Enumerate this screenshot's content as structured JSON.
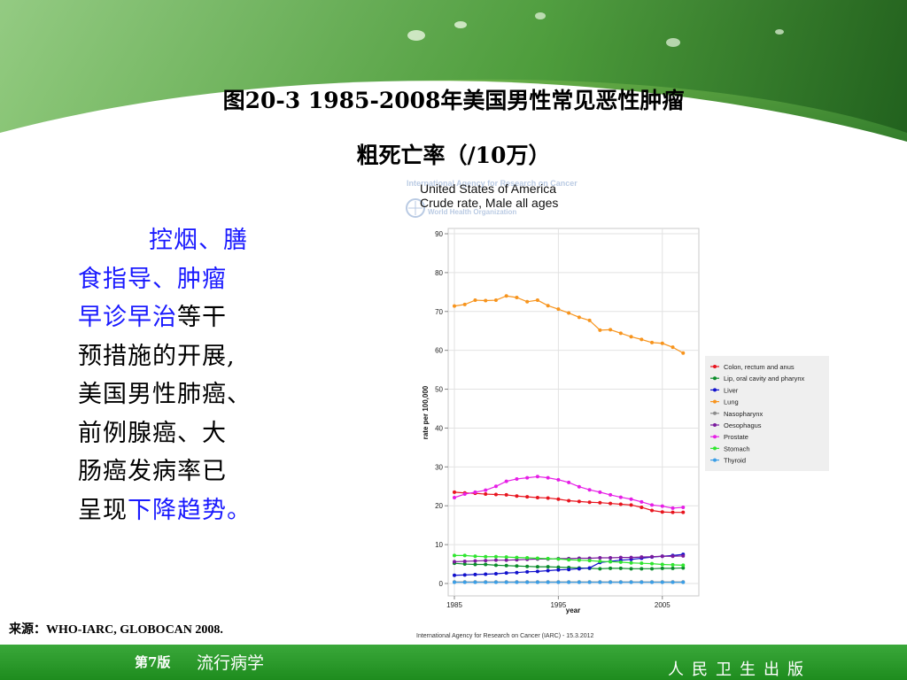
{
  "slide": {
    "title_line1": "图20-3  1985-2008年美国男性常见恶性肿瘤",
    "title_line2": "粗死亡率（/10万）"
  },
  "side": {
    "hl1": "控烟、膳",
    "hl2": "食指导、肿瘤",
    "hl3": "早诊早治",
    "t3": "等干",
    "t4": "预措施的开展,",
    "t5": "美国男性肺癌、",
    "t6": "前例腺癌、大",
    "t7": "肠癌发病率已",
    "t8": "呈现",
    "hl8": "下降趋势。"
  },
  "source_text": "来源：WHO-IARC, GLOBOCAN 2008.",
  "footer": {
    "edition": "第7版",
    "book": "流行病学",
    "publisher": "人民卫生出版"
  },
  "colors": {
    "highlight_text": "#1a1aff",
    "footer_green": "#2a9a2a"
  },
  "chart_data": {
    "type": "line",
    "title": "United States of America",
    "subtitle": "Crude rate, Male all ages",
    "watermark_line1": "International Agency for Research on Cancer",
    "watermark_line2": "World Health Organization",
    "xlabel": "year",
    "ylabel": "rate per 100,000",
    "xlim": [
      1985,
      2008
    ],
    "ylim": [
      0,
      90
    ],
    "xticks": [
      "1985",
      "1995",
      "2005"
    ],
    "yticks": [
      "0",
      "10",
      "20",
      "30",
      "40",
      "50",
      "60",
      "70",
      "80",
      "90"
    ],
    "grid": true,
    "legend_position": "right",
    "credit": "International Agency for Research on Cancer (IARC) - 15.3.2012",
    "x": [
      1985,
      1986,
      1987,
      1988,
      1989,
      1990,
      1991,
      1992,
      1993,
      1994,
      1995,
      1996,
      1997,
      1998,
      1999,
      2000,
      2001,
      2002,
      2003,
      2004,
      2005,
      2006,
      2007
    ],
    "series": [
      {
        "name": "Colon, rectum and anus",
        "color": "#e8141e",
        "values": [
          23.5,
          23.3,
          23.2,
          23.0,
          22.9,
          22.8,
          22.5,
          22.3,
          22.1,
          22.0,
          21.7,
          21.3,
          21.1,
          20.9,
          20.8,
          20.6,
          20.4,
          20.2,
          19.6,
          18.8,
          18.4,
          18.3,
          18.3
        ]
      },
      {
        "name": "Lip, oral cavity and pharynx",
        "color": "#0a8c2a",
        "values": [
          5.2,
          5.0,
          4.9,
          4.9,
          4.7,
          4.6,
          4.5,
          4.4,
          4.3,
          4.3,
          4.2,
          4.1,
          4.0,
          3.9,
          3.8,
          3.9,
          3.9,
          3.8,
          3.8,
          3.8,
          3.9,
          3.9,
          4.0
        ]
      },
      {
        "name": "Liver",
        "color": "#1010cc",
        "values": [
          2.1,
          2.2,
          2.3,
          2.4,
          2.5,
          2.7,
          2.8,
          3.0,
          3.1,
          3.3,
          3.5,
          3.6,
          3.8,
          4.0,
          5.4,
          5.7,
          6.0,
          6.2,
          6.5,
          6.8,
          7.0,
          7.2,
          7.5
        ]
      },
      {
        "name": "Lung",
        "color": "#f7941d",
        "values": [
          71.4,
          71.8,
          72.9,
          72.8,
          72.9,
          74.0,
          73.6,
          72.5,
          72.9,
          71.5,
          70.6,
          69.6,
          68.5,
          67.7,
          65.2,
          65.3,
          64.4,
          63.5,
          62.8,
          62.0,
          61.8,
          60.8,
          59.3
        ]
      },
      {
        "name": "Nasopharynx",
        "color": "#8c8c8c",
        "values": [
          0.4,
          0.4,
          0.4,
          0.4,
          0.4,
          0.4,
          0.4,
          0.4,
          0.4,
          0.4,
          0.4,
          0.4,
          0.4,
          0.4,
          0.4,
          0.4,
          0.4,
          0.4,
          0.4,
          0.4,
          0.4,
          0.4,
          0.4
        ]
      },
      {
        "name": "Oesophagus",
        "color": "#7a1a9e",
        "values": [
          5.6,
          5.7,
          5.8,
          5.9,
          6.0,
          6.0,
          6.1,
          6.2,
          6.3,
          6.3,
          6.4,
          6.4,
          6.5,
          6.5,
          6.6,
          6.6,
          6.7,
          6.7,
          6.8,
          6.9,
          7.0,
          7.0,
          7.1
        ]
      },
      {
        "name": "Prostate",
        "color": "#e61ee6",
        "values": [
          22.1,
          23.0,
          23.5,
          24.0,
          25.0,
          26.3,
          26.9,
          27.2,
          27.5,
          27.2,
          26.7,
          26.0,
          24.9,
          24.1,
          23.5,
          22.8,
          22.2,
          21.7,
          21.0,
          20.2,
          19.9,
          19.4,
          19.6
        ]
      },
      {
        "name": "Stomach",
        "color": "#2ee62e",
        "values": [
          7.2,
          7.2,
          7.0,
          6.9,
          6.9,
          6.8,
          6.7,
          6.6,
          6.5,
          6.4,
          6.3,
          6.1,
          6.0,
          5.9,
          5.7,
          5.6,
          5.5,
          5.3,
          5.2,
          5.1,
          4.9,
          4.8,
          4.7
        ]
      },
      {
        "name": "Thyroid",
        "color": "#3a9ee6",
        "values": [
          0.3,
          0.3,
          0.3,
          0.3,
          0.3,
          0.3,
          0.3,
          0.3,
          0.3,
          0.3,
          0.3,
          0.3,
          0.3,
          0.3,
          0.3,
          0.3,
          0.3,
          0.3,
          0.3,
          0.3,
          0.3,
          0.3,
          0.3
        ]
      }
    ]
  }
}
